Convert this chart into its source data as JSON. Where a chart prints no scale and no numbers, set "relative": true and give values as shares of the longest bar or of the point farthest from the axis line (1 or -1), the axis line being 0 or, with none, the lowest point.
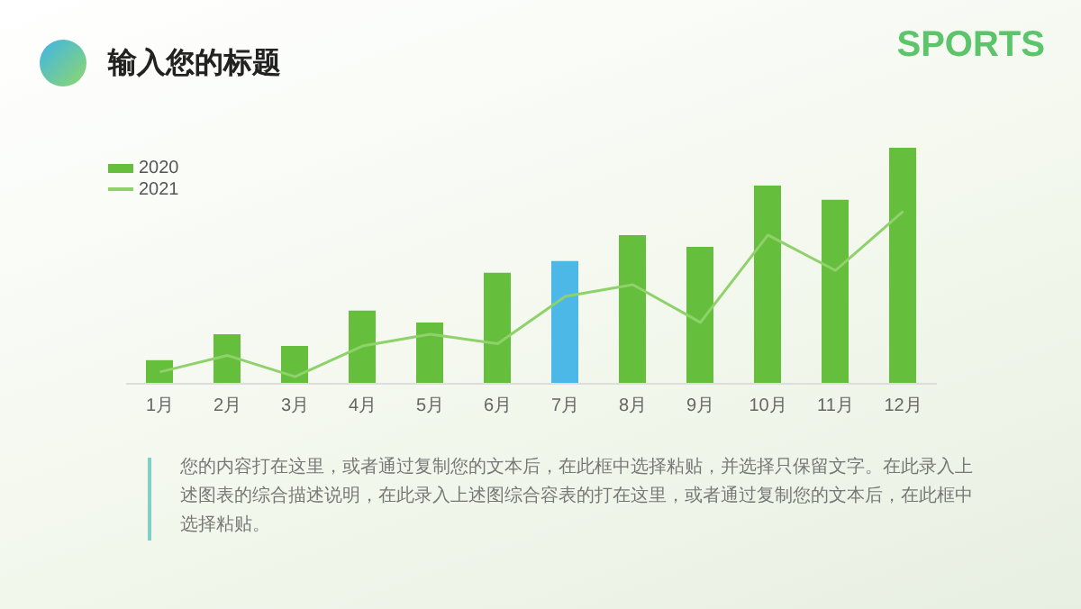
{
  "chart_data": {
    "type": "bar",
    "title": "输入您的标题",
    "relative": true,
    "legend": "top left",
    "categories": [
      "1月",
      "2月",
      "3月",
      "4月",
      "5月",
      "6月",
      "7月",
      "8月",
      "9月",
      "10月",
      "11月",
      "12月"
    ],
    "series": [
      {
        "name": "2020",
        "color": "#66bf3c",
        "colors": [
          "#66bf3c",
          "#66bf3c",
          "#66bf3c",
          "#66bf3c",
          "#66bf3c",
          "#66bf3c",
          "#4cb8e8",
          "#66bf3c",
          "#66bf3c",
          "#66bf3c",
          "#66bf3c",
          "#66bf3c"
        ],
        "values": [
          0.1,
          0.21,
          0.16,
          0.31,
          0.26,
          0.47,
          0.52,
          0.63,
          0.58,
          0.84,
          0.78,
          1
        ]
      },
      {
        "name": "2021",
        "type": "line",
        "color": "#8fd16a",
        "marker": "none",
        "values": [
          0.05,
          0.12,
          0.03,
          0.16,
          0.21,
          0.17,
          0.37,
          0.42,
          0.26,
          0.63,
          0.48,
          0.73
        ]
      }
    ],
    "annotations": [
      "SPORTS",
      "您的内容打在这里，或者通过复制您的文本后，在此框中选择粘贴，并选择只保留文字。在此录入上述图表的综合描述说明，在此录入上述图综合容表的打在这里，或者通过复制您的文本后，在此框中选择粘贴。"
    ]
  }
}
